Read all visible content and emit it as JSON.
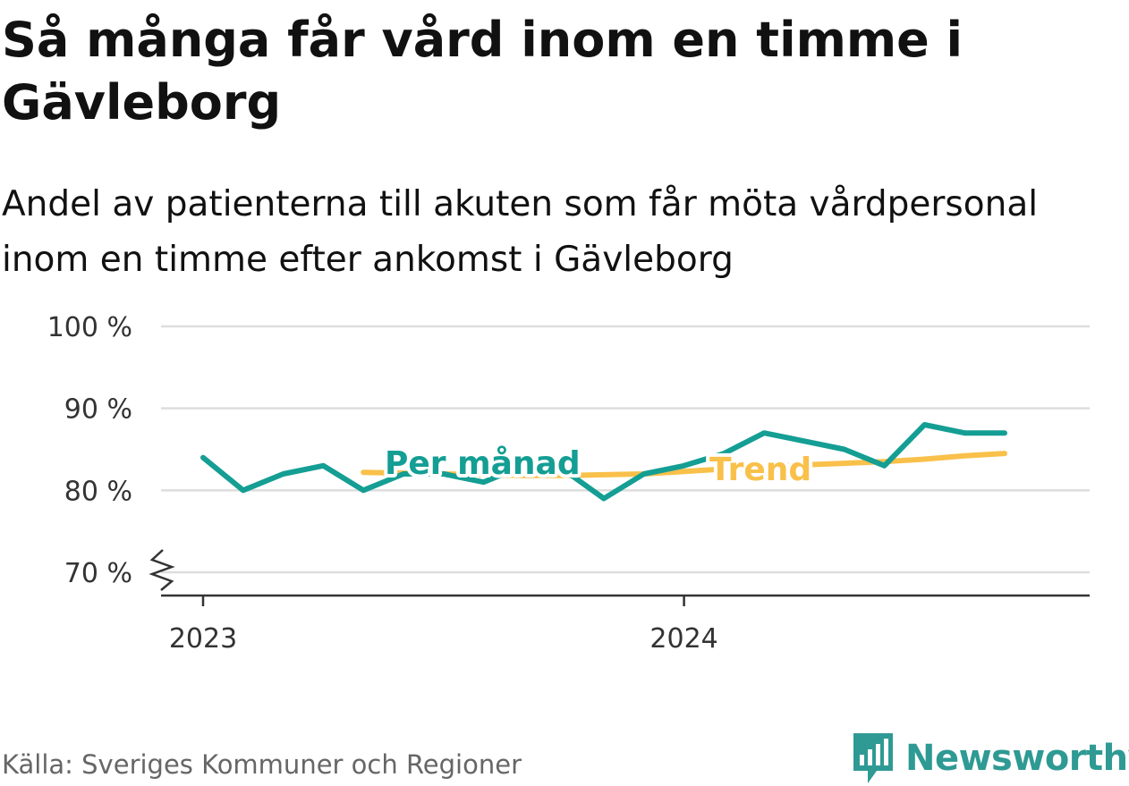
{
  "header": {
    "title": "Så många får vård inom en timme i Gävleborg",
    "subtitle": "Andel av patienterna till akuten som får möta vårdpersonal inom en timme efter ankomst i Gävleborg"
  },
  "footer": {
    "source": "Källa: Sveriges Kommuner och Regioner",
    "brand": "Newsworthy"
  },
  "colors": {
    "monthly": "#149e94",
    "trend": "#f9c04a",
    "grid": "#dddddd",
    "axis": "#333333"
  },
  "chart_data": {
    "type": "line",
    "y_ticks": [
      "100 %",
      "90 %",
      "80 %",
      "70 %"
    ],
    "ylim": [
      70,
      100
    ],
    "x_ticks": [
      "2023",
      "2024"
    ],
    "y_axis_break": true,
    "grid": true,
    "months": [
      "2023-01",
      "2023-02",
      "2023-03",
      "2023-04",
      "2023-05",
      "2023-06",
      "2023-07",
      "2023-08",
      "2023-09",
      "2023-10",
      "2023-11",
      "2023-12",
      "2024-01",
      "2024-02",
      "2024-03",
      "2024-04",
      "2024-05",
      "2024-06",
      "2024-07",
      "2024-08",
      "2024-09",
      "2024-10",
      "2024-11"
    ],
    "series": [
      {
        "name": "Per månad",
        "color": "#149e94",
        "values": [
          84,
          80,
          82,
          83,
          80,
          82,
          82,
          81,
          83,
          82.5,
          79,
          82,
          83,
          84.5,
          87,
          86,
          85,
          83,
          88,
          87,
          87
        ]
      },
      {
        "name": "Trend",
        "color": "#f9c04a",
        "values": [
          82.2,
          82.1,
          82,
          81.9,
          81.8,
          81.8,
          81.9,
          82,
          82.3,
          82.6,
          82.9,
          83.1,
          83.3,
          83.5,
          83.8,
          84.2,
          84.5
        ]
      }
    ],
    "series_start": [
      "2023-01",
      "2023-05"
    ]
  }
}
